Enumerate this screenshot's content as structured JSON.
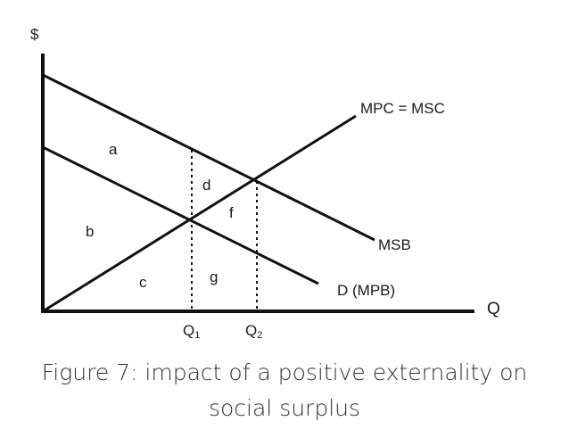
{
  "diagram": {
    "y_axis_label": "$",
    "x_axis_label": "Q",
    "curves": {
      "supply": "MPC = MSC",
      "social_benefit": "MSB",
      "private_benefit": "D (MPB)"
    },
    "quantities": [
      {
        "base": "Q",
        "sub": "1"
      },
      {
        "base": "Q",
        "sub": "2"
      }
    ],
    "regions": [
      "a",
      "b",
      "c",
      "d",
      "f",
      "g"
    ]
  },
  "caption": {
    "line1": "Figure 7: impact of a positive externality on",
    "line2": "social surplus"
  },
  "colors": {
    "lines": "#111111",
    "caption": "#333333"
  }
}
